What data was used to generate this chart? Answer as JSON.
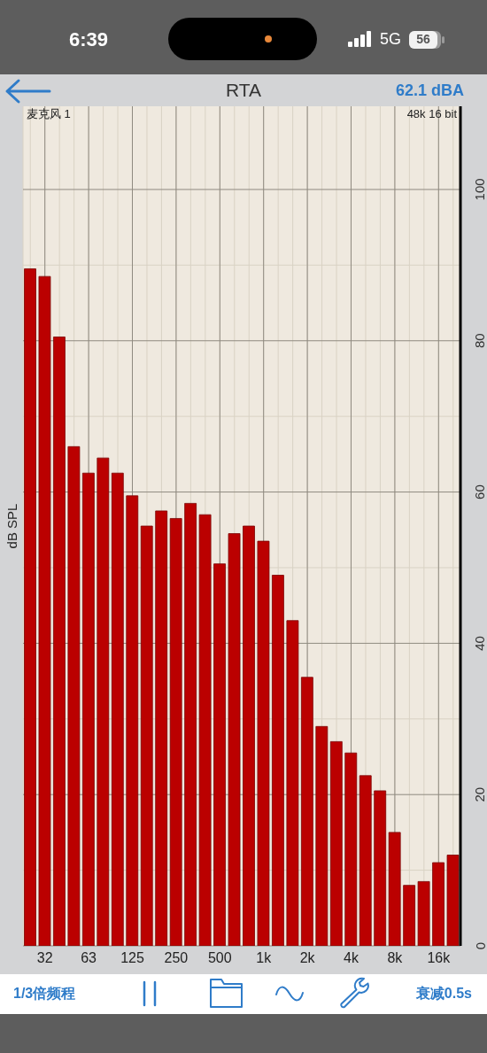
{
  "chart_data": {
    "type": "bar",
    "title": "RTA",
    "ylabel": "dB SPL",
    "categories": [
      null,
      "32",
      null,
      null,
      "63",
      null,
      null,
      "125",
      null,
      null,
      "250",
      null,
      null,
      "500",
      null,
      null,
      "1k",
      null,
      null,
      "2k",
      null,
      null,
      "4k",
      null,
      null,
      "8k",
      null,
      null,
      "16k",
      null
    ],
    "values": [
      89.5,
      88.5,
      80.5,
      66,
      62.5,
      64.5,
      62.5,
      59.5,
      55.5,
      57.5,
      56.5,
      58.5,
      57,
      50.5,
      54.5,
      55.5,
      53.5,
      49,
      43,
      35.5,
      29,
      27,
      25.5,
      22.5,
      20.5,
      15,
      8,
      8.5,
      11,
      12
    ],
    "color": "#bb0000",
    "ylim": [
      0,
      111
    ],
    "yticks": [
      0,
      {
        "value": 10,
        "label": null
      },
      20,
      {
        "value": 30,
        "label": null
      },
      40,
      {
        "value": 50,
        "label": null
      },
      60,
      {
        "value": 70,
        "label": null
      },
      80,
      {
        "value": 90,
        "label": null
      },
      100
    ],
    "grid": true,
    "annotations": [
      "6:39",
      "5G",
      "56",
      "62.1 dBA",
      "麦克风 1",
      "48k 16 bit",
      "1/3倍频程",
      "衰减0.5s"
    ]
  }
}
